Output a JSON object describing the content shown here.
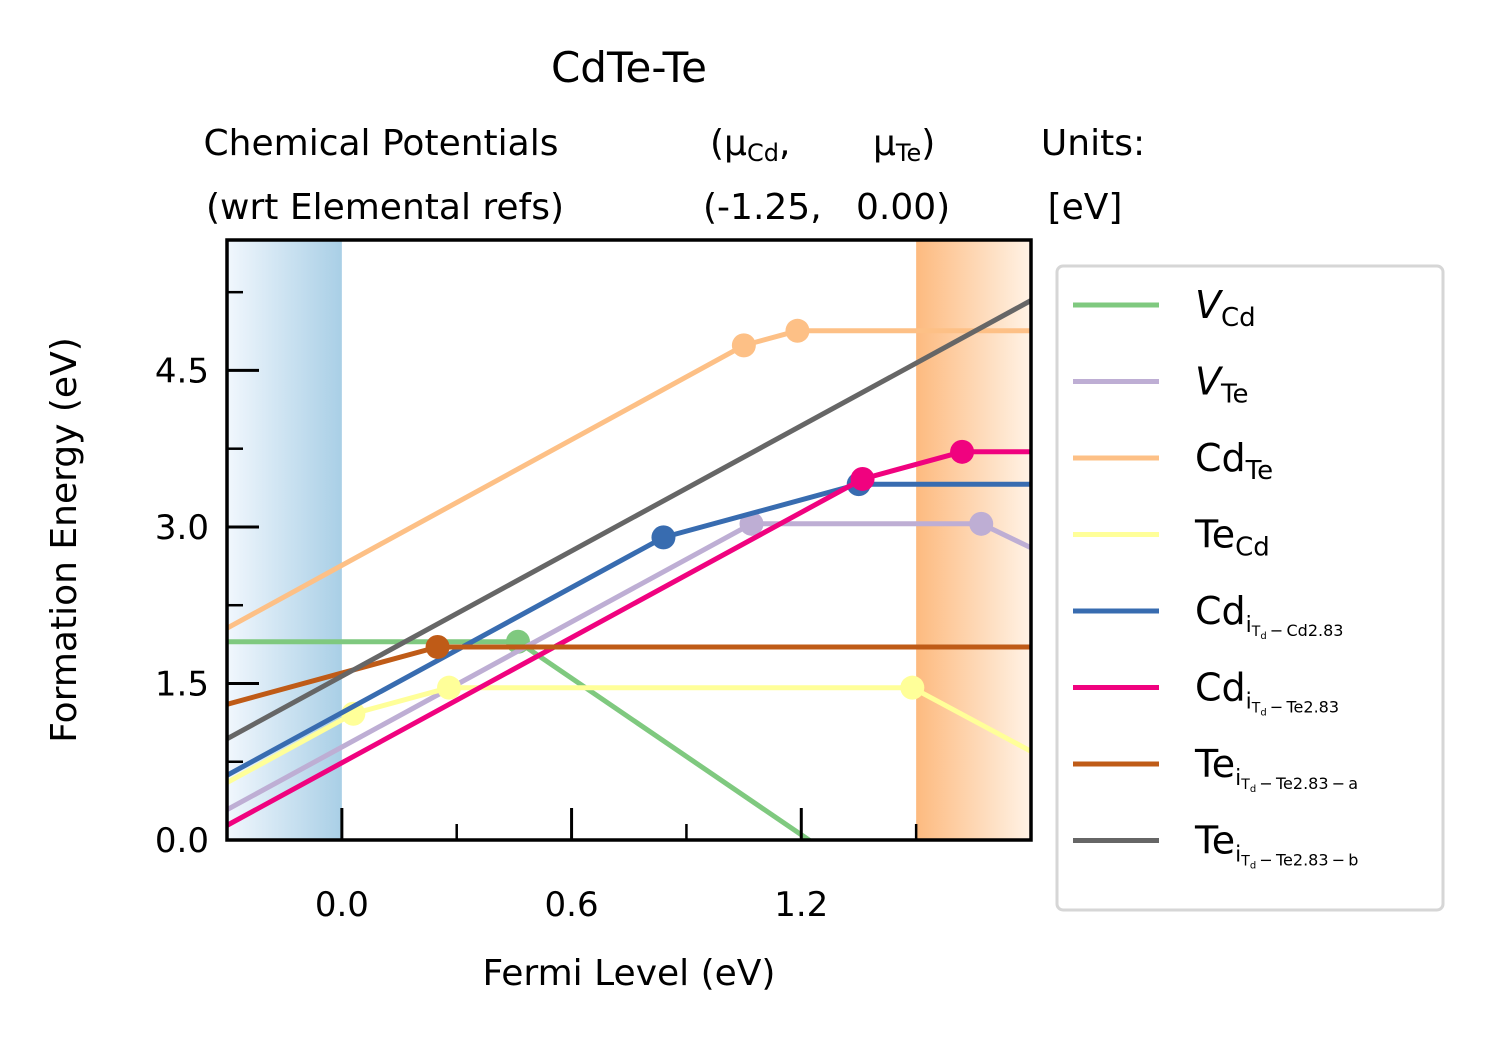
{
  "chart_data": {
    "type": "line",
    "title": "CdTe-Te",
    "subtitle": {
      "label_col": [
        "Chemical Potentials",
        "(wrt Elemental refs)"
      ],
      "mu_cd": [
        "(μ",
        "Cd",
        ",",
        "(-1.25,"
      ],
      "mu_te": [
        "μ",
        "Te",
        ")",
        "0.00)"
      ],
      "units": [
        "Units:",
        "[eV]"
      ]
    },
    "xlabel": "Fermi Level (eV)",
    "ylabel": "Formation Energy (eV)",
    "xlim": [
      -0.3,
      1.8
    ],
    "ylim": [
      0.0,
      5.75
    ],
    "xticks": [
      0.0,
      0.6,
      1.2
    ],
    "xtick_labels": [
      "0.0",
      "0.6",
      "1.2"
    ],
    "yticks": [
      0.0,
      1.5,
      3.0,
      4.5
    ],
    "ytick_labels": [
      "0.0",
      "1.5",
      "3.0",
      "4.5"
    ],
    "band_edges": {
      "vbm": 0.0,
      "cbm": 1.5
    },
    "grid": false,
    "legend_position": "outside-right",
    "series": [
      {
        "label_main": "V",
        "label_sub": "Cd",
        "italic": true,
        "color": "#7fc97f",
        "x": [
          -0.3,
          0.46,
          1.8
        ],
        "y": [
          1.9,
          1.9,
          -1.45
        ],
        "dots": [
          [
            0.46,
            1.9
          ]
        ]
      },
      {
        "label_main": "V",
        "label_sub": "Te",
        "italic": true,
        "color": "#beaed4",
        "x": [
          -0.3,
          1.07,
          1.67,
          1.8
        ],
        "y": [
          0.29,
          3.03,
          3.03,
          2.8
        ],
        "dots": [
          [
            1.07,
            3.03
          ],
          [
            1.67,
            3.03
          ]
        ]
      },
      {
        "label_main": "Cd",
        "label_sub": "Te",
        "italic": false,
        "color": "#fdc086",
        "x": [
          -0.3,
          1.05,
          1.19,
          1.8
        ],
        "y": [
          2.03,
          4.74,
          4.88,
          4.88
        ],
        "dots": [
          [
            1.05,
            4.74
          ],
          [
            1.19,
            4.88
          ]
        ]
      },
      {
        "label_main": "Te",
        "label_sub": "Cd",
        "italic": false,
        "color": "#ffff99",
        "x": [
          -0.3,
          0.03,
          0.28,
          1.49,
          1.8
        ],
        "y": [
          0.55,
          1.21,
          1.46,
          1.46,
          0.85
        ],
        "dots": [
          [
            0.03,
            1.21
          ],
          [
            0.28,
            1.46
          ],
          [
            1.49,
            1.46
          ]
        ]
      },
      {
        "label_main": "Cd",
        "label_sub": "i",
        "label_subsub": "T",
        "label_subsubsub": "d",
        "label_tail": " − Cd2.83",
        "italic": false,
        "color": "#386cb0",
        "x": [
          -0.3,
          0.84,
          1.35,
          1.8
        ],
        "y": [
          0.62,
          2.9,
          3.41,
          3.41
        ],
        "dots": [
          [
            0.84,
            2.9
          ],
          [
            1.35,
            3.41
          ]
        ]
      },
      {
        "label_main": "Cd",
        "label_sub": "i",
        "label_subsub": "T",
        "label_subsubsub": "d",
        "label_tail": " − Te2.83",
        "italic": false,
        "color": "#f0027f",
        "x": [
          -0.3,
          1.36,
          1.62,
          1.8
        ],
        "y": [
          0.14,
          3.46,
          3.72,
          3.72
        ],
        "dots": [
          [
            1.36,
            3.46
          ],
          [
            1.62,
            3.72
          ]
        ]
      },
      {
        "label_main": "Te",
        "label_sub": "i",
        "label_subsub": "T",
        "label_subsubsub": "d",
        "label_tail": " − Te2.83 − a",
        "italic": false,
        "color": "#bf5b17",
        "x": [
          -0.3,
          0.25,
          1.8
        ],
        "y": [
          1.3,
          1.85,
          1.85
        ],
        "dots": [
          [
            0.25,
            1.85
          ]
        ]
      },
      {
        "label_main": "Te",
        "label_sub": "i",
        "label_subsub": "T",
        "label_subsubsub": "d",
        "label_tail": " − Te2.83 − b",
        "italic": false,
        "color": "#666666",
        "x": [
          -0.3,
          1.8
        ],
        "y": [
          0.97,
          5.17
        ],
        "dots": []
      }
    ]
  }
}
